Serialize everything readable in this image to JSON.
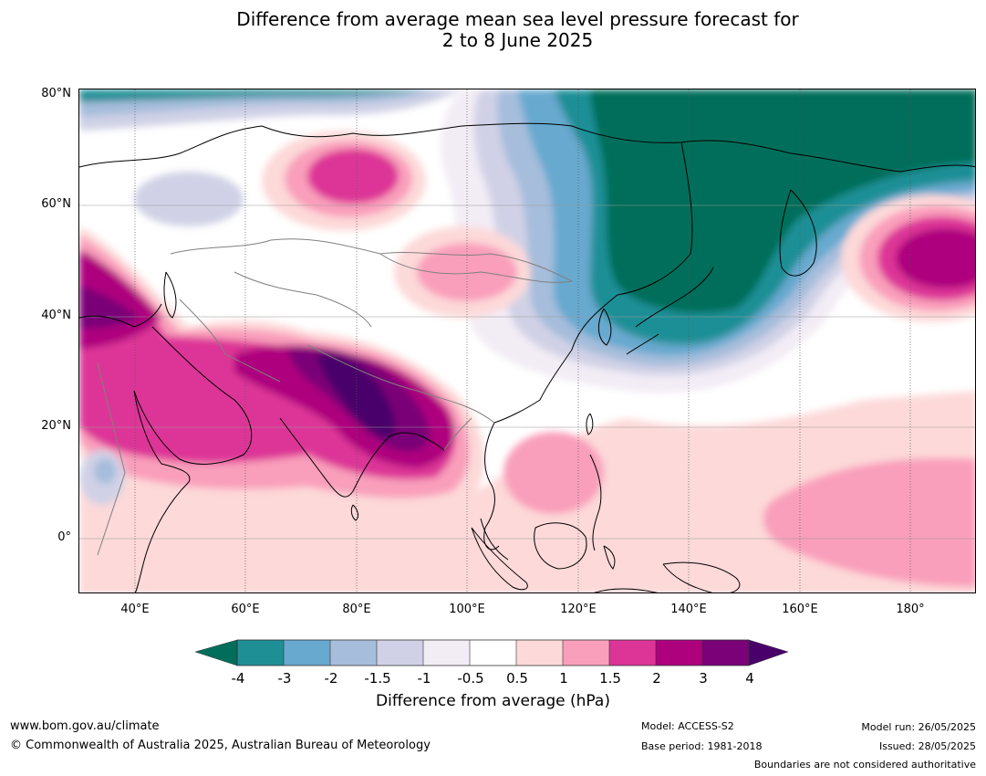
{
  "title": {
    "line1": "Difference from average mean sea level pressure forecast for",
    "line2": "2 to 8 June 2025"
  },
  "map": {
    "lat_labels": [
      "80°N",
      "60°N",
      "40°N",
      "20°N",
      "0°"
    ],
    "lon_labels": [
      "40°E",
      "60°E",
      "80°E",
      "100°E",
      "120°E",
      "140°E",
      "160°E",
      "180°"
    ],
    "extent": {
      "lon_min": 30,
      "lon_max": 192,
      "lat_min": -10,
      "lat_max": 81
    },
    "palette": {
      "lt_neg4": "#006e5a",
      "neg4_neg3": "#1f8f96",
      "neg3_neg2": "#67a9cf",
      "neg2_neg15": "#a6bddb",
      "neg15_neg1": "#d0d1e6",
      "neg1_neg05": "#f2ecf5",
      "neg05_05": "#ffffff",
      "p05_1": "#fdd9d9",
      "p1_15": "#f99fbb",
      "p15_2": "#dd3497",
      "p2_3": "#ae017e",
      "p3_4": "#7a0177",
      "gt4": "#49006a"
    }
  },
  "colorbar": {
    "ticks": [
      "-4",
      "-3",
      "-2",
      "-1.5",
      "-1",
      "-0.5",
      "0.5",
      "1",
      "1.5",
      "2",
      "3",
      "4"
    ],
    "label": "Difference from average (hPa)"
  },
  "footer": {
    "website": "www.bom.gov.au/climate",
    "copyright": "© Commonwealth of Australia 2025, Australian Bureau of Meteorology",
    "model": "Model: ACCESS-S2",
    "base_period": "Base period: 1981-2018",
    "model_run": "Model run: 26/05/2025",
    "issued": "Issued: 28/05/2025",
    "disclaimer": "Boundaries are not considered authoritative"
  }
}
